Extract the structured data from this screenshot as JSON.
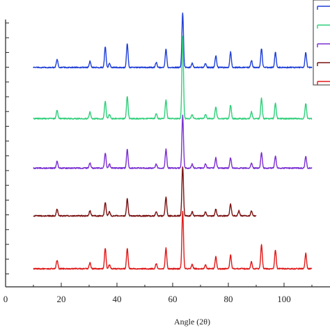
{
  "chart_data": {
    "type": "line",
    "xlabel": "Angle (2θ)",
    "ylabel": "",
    "xlim": [
      0,
      115
    ],
    "x_ticks": [
      0,
      20,
      40,
      60,
      80,
      100
    ],
    "y_ticks_shown_without_labels": true,
    "grid": false,
    "legend": "top-right (clipped, labels not visible)",
    "series": [
      {
        "color": "#1f3fd6",
        "x_range": [
          10,
          110
        ],
        "baseline": 5.9,
        "peaks": [
          {
            "x": 18.5,
            "h": 0.25
          },
          {
            "x": 30.3,
            "h": 0.18
          },
          {
            "x": 35.8,
            "h": 0.6
          },
          {
            "x": 37.3,
            "h": 0.12
          },
          {
            "x": 43.7,
            "h": 0.7
          },
          {
            "x": 54.1,
            "h": 0.15
          },
          {
            "x": 57.6,
            "h": 0.55
          },
          {
            "x": 63.6,
            "h": 1.6
          },
          {
            "x": 67.0,
            "h": 0.12
          },
          {
            "x": 71.8,
            "h": 0.12
          },
          {
            "x": 75.5,
            "h": 0.35
          },
          {
            "x": 80.8,
            "h": 0.45
          },
          {
            "x": 88.3,
            "h": 0.2
          },
          {
            "x": 91.9,
            "h": 0.55
          },
          {
            "x": 96.9,
            "h": 0.45
          },
          {
            "x": 107.8,
            "h": 0.45
          }
        ]
      },
      {
        "color": "#2fcf7a",
        "x_range": [
          10,
          110
        ],
        "baseline": 4.4,
        "peaks": [
          {
            "x": 18.5,
            "h": 0.25
          },
          {
            "x": 30.3,
            "h": 0.2
          },
          {
            "x": 35.8,
            "h": 0.5
          },
          {
            "x": 37.3,
            "h": 0.12
          },
          {
            "x": 43.7,
            "h": 0.65
          },
          {
            "x": 54.1,
            "h": 0.15
          },
          {
            "x": 57.6,
            "h": 0.55
          },
          {
            "x": 63.6,
            "h": 2.4
          },
          {
            "x": 67.0,
            "h": 0.12
          },
          {
            "x": 71.8,
            "h": 0.12
          },
          {
            "x": 75.5,
            "h": 0.35
          },
          {
            "x": 80.8,
            "h": 0.4
          },
          {
            "x": 88.3,
            "h": 0.2
          },
          {
            "x": 91.9,
            "h": 0.6
          },
          {
            "x": 96.9,
            "h": 0.45
          },
          {
            "x": 107.8,
            "h": 0.45
          }
        ]
      },
      {
        "color": "#7a2fd0",
        "x_range": [
          10,
          110
        ],
        "baseline": 2.95,
        "peaks": [
          {
            "x": 18.5,
            "h": 0.2
          },
          {
            "x": 30.3,
            "h": 0.15
          },
          {
            "x": 35.8,
            "h": 0.45
          },
          {
            "x": 37.3,
            "h": 0.12
          },
          {
            "x": 43.7,
            "h": 0.55
          },
          {
            "x": 54.1,
            "h": 0.12
          },
          {
            "x": 57.6,
            "h": 0.55
          },
          {
            "x": 63.6,
            "h": 1.55
          },
          {
            "x": 67.0,
            "h": 0.12
          },
          {
            "x": 71.8,
            "h": 0.12
          },
          {
            "x": 75.5,
            "h": 0.3
          },
          {
            "x": 80.8,
            "h": 0.3
          },
          {
            "x": 88.3,
            "h": 0.15
          },
          {
            "x": 91.9,
            "h": 0.45
          },
          {
            "x": 96.9,
            "h": 0.35
          },
          {
            "x": 107.8,
            "h": 0.35
          }
        ]
      },
      {
        "color": "#7a1010",
        "x_range": [
          10,
          90
        ],
        "baseline": 1.55,
        "peaks": [
          {
            "x": 18.5,
            "h": 0.2
          },
          {
            "x": 30.3,
            "h": 0.15
          },
          {
            "x": 35.8,
            "h": 0.4
          },
          {
            "x": 37.3,
            "h": 0.12
          },
          {
            "x": 43.7,
            "h": 0.5
          },
          {
            "x": 54.1,
            "h": 0.12
          },
          {
            "x": 57.6,
            "h": 0.55
          },
          {
            "x": 63.6,
            "h": 1.45
          },
          {
            "x": 67.0,
            "h": 0.12
          },
          {
            "x": 71.8,
            "h": 0.12
          },
          {
            "x": 75.5,
            "h": 0.2
          },
          {
            "x": 80.8,
            "h": 0.35
          },
          {
            "x": 83.8,
            "h": 0.15
          },
          {
            "x": 88.3,
            "h": 0.15
          }
        ]
      },
      {
        "color": "#e01818",
        "x_range": [
          10,
          110
        ],
        "baseline": 0.0,
        "peaks": [
          {
            "x": 18.5,
            "h": 0.25
          },
          {
            "x": 30.3,
            "h": 0.18
          },
          {
            "x": 35.8,
            "h": 0.6
          },
          {
            "x": 37.3,
            "h": 0.12
          },
          {
            "x": 43.7,
            "h": 0.6
          },
          {
            "x": 54.1,
            "h": 0.15
          },
          {
            "x": 57.6,
            "h": 0.6
          },
          {
            "x": 63.6,
            "h": 1.7
          },
          {
            "x": 67.0,
            "h": 0.12
          },
          {
            "x": 71.8,
            "h": 0.12
          },
          {
            "x": 75.5,
            "h": 0.35
          },
          {
            "x": 80.8,
            "h": 0.4
          },
          {
            "x": 88.3,
            "h": 0.2
          },
          {
            "x": 91.9,
            "h": 0.7
          },
          {
            "x": 96.9,
            "h": 0.55
          },
          {
            "x": 107.8,
            "h": 0.45
          }
        ]
      }
    ]
  }
}
